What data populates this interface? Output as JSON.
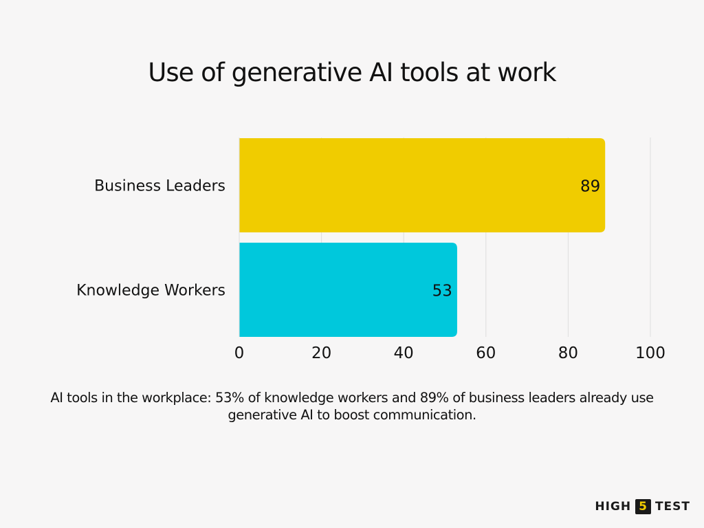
{
  "chart_data": {
    "type": "bar",
    "orientation": "horizontal",
    "title": "Use of generative AI tools at work",
    "categories": [
      "Business Leaders",
      "Knowledge Workers"
    ],
    "values": [
      89,
      53
    ],
    "data_labels": [
      "89",
      "53"
    ],
    "bar_colors": [
      "#f0cc00",
      "#00c8dc"
    ],
    "xlim": [
      0,
      100
    ],
    "x_ticks": [
      0,
      20,
      40,
      60,
      80,
      100
    ],
    "x_tick_labels": [
      "0",
      "20",
      "40",
      "60",
      "80",
      "100"
    ],
    "grid": "vertical",
    "legend": "none"
  },
  "caption": "AI tools in the workplace: 53% of knowledge workers and 89% of business leaders already use generative AI to boost communication.",
  "logo": {
    "left": "HIGH",
    "badge": "5",
    "right": "TEST"
  }
}
